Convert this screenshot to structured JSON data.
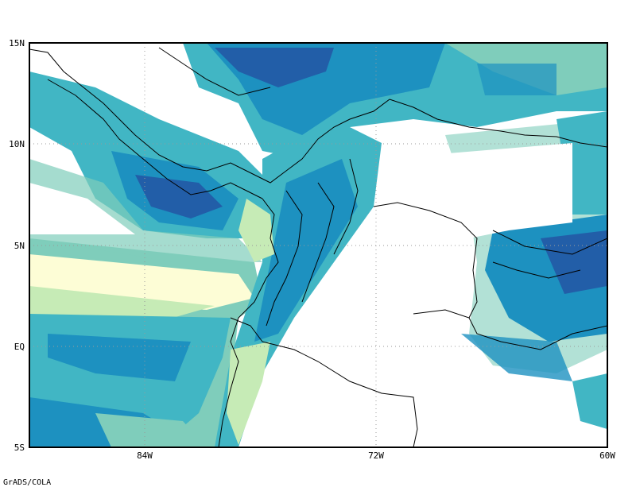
{
  "map": {
    "lat_labels": [
      "15N",
      "10N",
      "5N",
      "EQ",
      "5S"
    ],
    "lon_labels": [
      "84W",
      "72W",
      "60W"
    ],
    "extent": {
      "lon_min": -90,
      "lon_max": -60,
      "lat_min": -5,
      "lat_max": 15
    },
    "gridlines": "dotted",
    "field_colors": [
      "#fdfdd6",
      "#c6ebb6",
      "#7fcdbb",
      "#41b6c4",
      "#1d91c0",
      "#225ea8"
    ],
    "coastline_color": "#000000"
  },
  "credit": "GrADS/COLA"
}
